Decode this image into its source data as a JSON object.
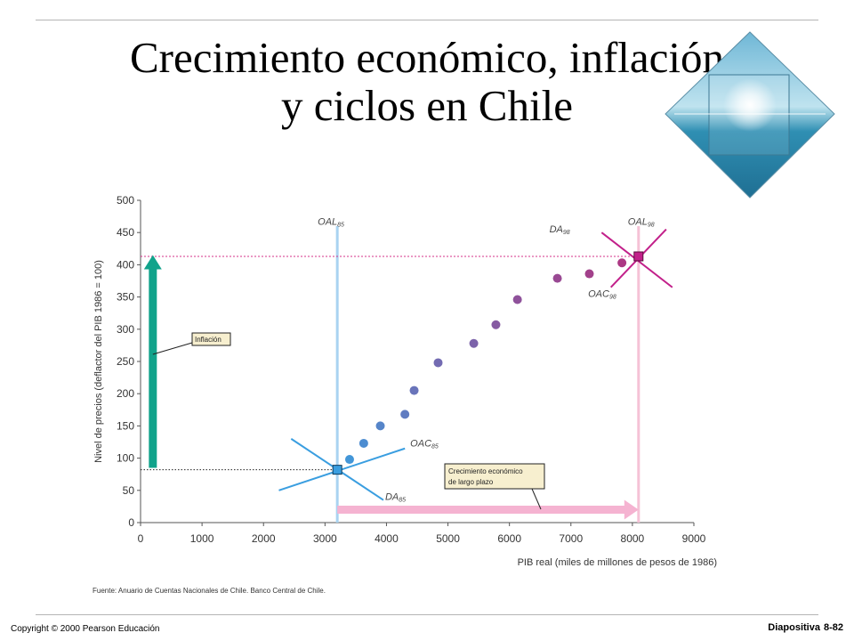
{
  "slide": {
    "title_line1": "Crecimiento económico, inflación",
    "title_line2": "y ciclos en Chile",
    "copyright": "Copyright © 2000 Pearson Educación",
    "slide_label": "Diapositiva",
    "slide_number": "8-82",
    "logo_icon": "diamond-sea-photo-icon"
  },
  "chart_data": {
    "type": "scatter",
    "xlabel": "PIB real (miles de millones de pesos de 1986)",
    "ylabel": "Nivel de precios (deflactor del PIB 1986 = 100)",
    "xlim": [
      0,
      9000
    ],
    "ylim": [
      0,
      500
    ],
    "xticks": [
      0,
      1000,
      2000,
      3000,
      4000,
      5000,
      6000,
      7000,
      8000,
      9000
    ],
    "yticks": [
      0,
      50,
      100,
      150,
      200,
      250,
      300,
      350,
      400,
      450,
      500
    ],
    "grid": false,
    "source": "Fuente: Anuario de Cuentas Nacionales de Chile. Banco Central de Chile.",
    "points": [
      {
        "x": 3200,
        "y": 82
      },
      {
        "x": 3400,
        "y": 98
      },
      {
        "x": 3630,
        "y": 123
      },
      {
        "x": 3900,
        "y": 150
      },
      {
        "x": 4300,
        "y": 168
      },
      {
        "x": 4450,
        "y": 205
      },
      {
        "x": 4840,
        "y": 248
      },
      {
        "x": 5420,
        "y": 278
      },
      {
        "x": 5780,
        "y": 307
      },
      {
        "x": 6130,
        "y": 346
      },
      {
        "x": 6780,
        "y": 379
      },
      {
        "x": 7300,
        "y": 386
      },
      {
        "x": 7830,
        "y": 403
      },
      {
        "x": 8100,
        "y": 413
      }
    ],
    "start_color": "#3a9ee0",
    "end_color": "#b5307c",
    "curves": {
      "oal85": {
        "label": "OAL",
        "sub": "85",
        "x": 3200,
        "color": "#a9d3f1"
      },
      "oal98": {
        "label": "OAL",
        "sub": "98",
        "x": 8100,
        "color": "#f5c2d6"
      },
      "oac85": {
        "label": "OAC",
        "sub": "85",
        "color": "#3a9ee0"
      },
      "da85": {
        "label": "DA",
        "sub": "85",
        "color": "#3a9ee0"
      },
      "oac98": {
        "label": "OAC",
        "sub": "98",
        "color": "#c2208a"
      },
      "da98": {
        "label": "DA",
        "sub": "98",
        "color": "#c2208a"
      }
    },
    "guides": {
      "y_start": 82,
      "y_end": 413,
      "y_end_color": "#d4338a"
    },
    "inflation_arrow": {
      "from": 85,
      "to": 415,
      "x": 200,
      "color": "#11a38b"
    },
    "growth_arrow": {
      "from": 3200,
      "to": 8100,
      "y": 20,
      "color": "#f5b3d1"
    },
    "annotations": {
      "inflation_label": "Inflación",
      "growth_label_line1": "Crecimiento económico",
      "growth_label_line2": "de largo plazo"
    }
  }
}
